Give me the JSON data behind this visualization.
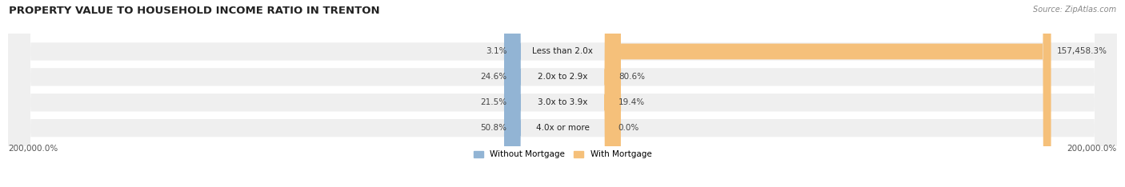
{
  "title": "PROPERTY VALUE TO HOUSEHOLD INCOME RATIO IN TRENTON",
  "source": "Source: ZipAtlas.com",
  "categories": [
    "Less than 2.0x",
    "2.0x to 2.9x",
    "3.0x to 3.9x",
    "4.0x or more"
  ],
  "without_mortgage": [
    3.1,
    24.6,
    21.5,
    50.8
  ],
  "with_mortgage": [
    157458.3,
    80.6,
    19.4,
    0.0
  ],
  "without_mortgage_label": [
    "3.1%",
    "24.6%",
    "21.5%",
    "50.8%"
  ],
  "with_mortgage_label": [
    "157,458.3%",
    "80.6%",
    "19.4%",
    "0.0%"
  ],
  "without_mortgage_color": "#92b4d4",
  "with_mortgage_color": "#f5c07a",
  "row_bg_color": "#efefef",
  "x_axis_left_label": "200,000.0%",
  "x_axis_right_label": "200,000.0%",
  "max_scale": 200000.0,
  "figsize": [
    14.06,
    2.34
  ],
  "dpi": 100
}
